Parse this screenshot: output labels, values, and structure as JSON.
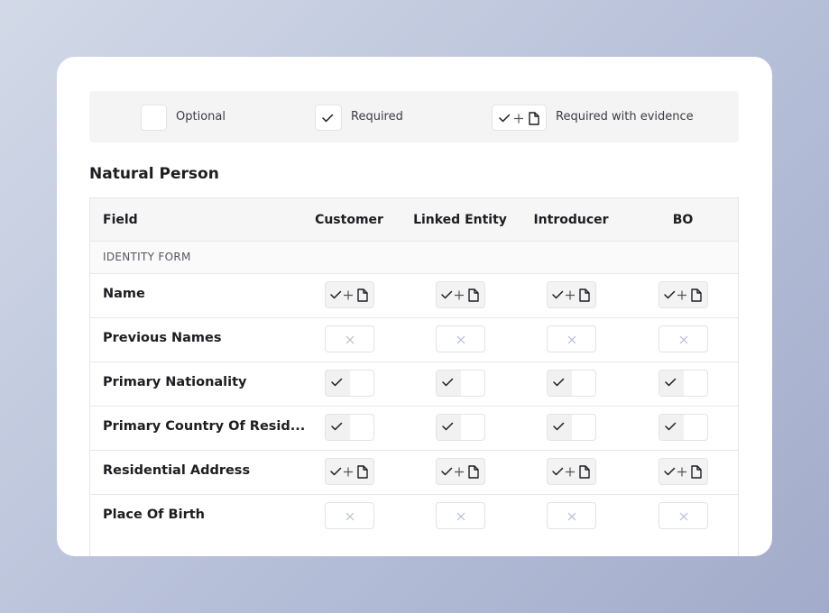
{
  "legend": {
    "items": [
      "Optional",
      "Required",
      "Required with evidence"
    ]
  },
  "heading": "Natural Person",
  "table": {
    "headers": [
      "Field",
      "Customer",
      "Linked Entity",
      "Introducer",
      "BO"
    ],
    "group": "IDENTITY FORM",
    "rows": [
      "Name",
      "Previous Names",
      "Primary Nationality",
      "Primary Country Of Resid...",
      "Residential Address",
      "Place Of Birth"
    ]
  }
}
